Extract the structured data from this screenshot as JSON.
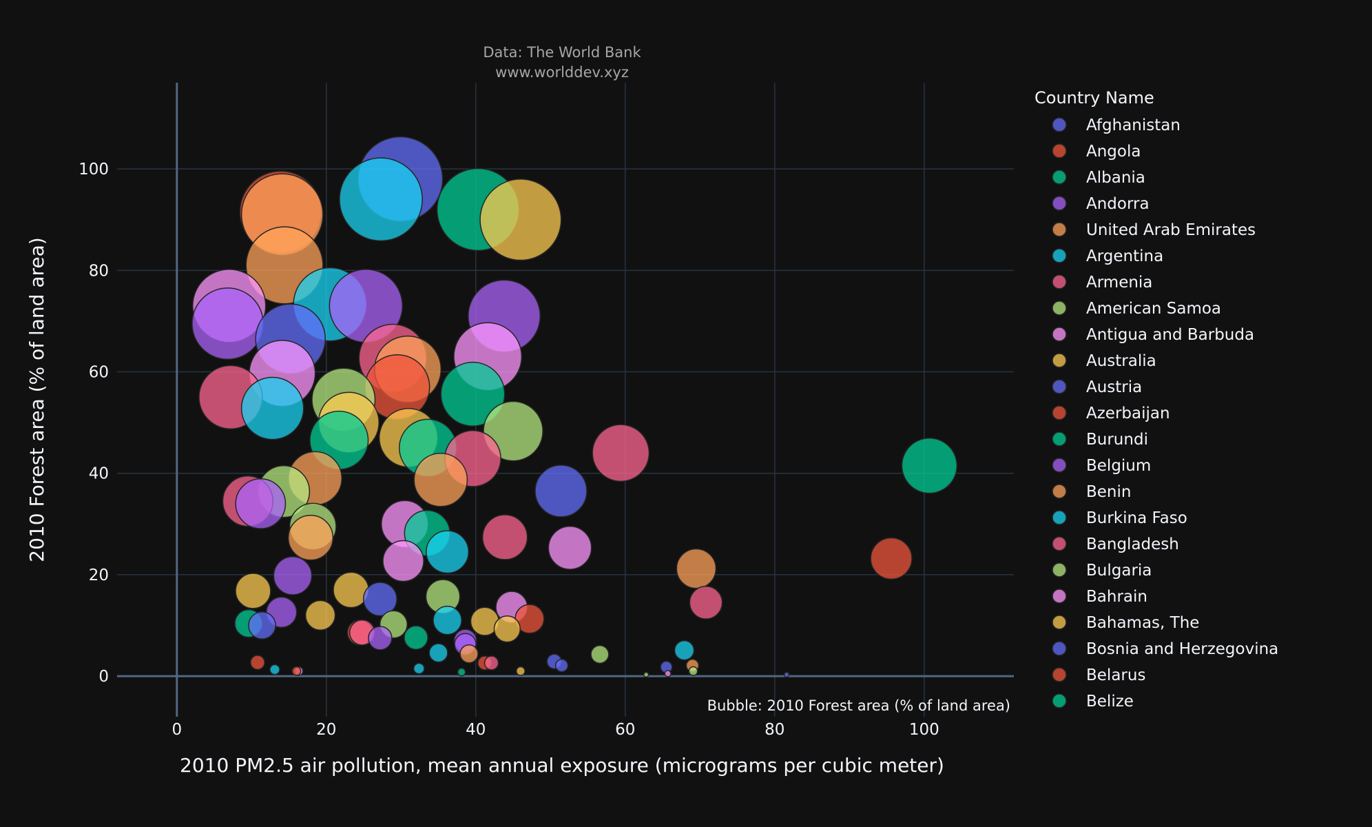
{
  "chart_data": {
    "type": "scatter",
    "subtitle_lines": [
      "Data: The World Bank",
      "www.worlddev.xyz"
    ],
    "xlabel": "2010 PM2.5 air pollution, mean annual exposure (micrograms per cubic meter)",
    "ylabel": "2010 Forest area (% of land area)",
    "size_note": "Bubble: 2010 Forest area (% of land area)",
    "xlim": [
      -8,
      112
    ],
    "ylim": [
      -8,
      117
    ],
    "xticks": [
      0,
      20,
      40,
      60,
      80,
      100
    ],
    "yticks": [
      0,
      20,
      40,
      60,
      80,
      100
    ],
    "grid": true,
    "legend_title": "Country Name",
    "legend_position": "right",
    "series": [
      {
        "name": "Afghanistan",
        "color": "#636efa",
        "points": [
          {
            "x": 51.5,
            "y": 2.1
          },
          {
            "x": 81.6,
            "y": 0.3
          }
        ]
      },
      {
        "name": "Angola",
        "color": "#EF553B",
        "points": [
          {
            "x": 10.8,
            "y": 2.7
          },
          {
            "x": 95.6,
            "y": 23.2
          }
        ]
      },
      {
        "name": "Albania",
        "color": "#00cc96",
        "points": [
          {
            "x": 33.5,
            "y": 28.2
          },
          {
            "x": 100.7,
            "y": 41.5
          }
        ]
      },
      {
        "name": "Andorra",
        "color": "#ab63fa",
        "points": [
          {
            "x": 11.2,
            "y": 34.0
          }
        ]
      },
      {
        "name": "United Arab Emirates",
        "color": "#FFA15A",
        "points": [
          {
            "x": 69.5,
            "y": 21.2
          },
          {
            "x": 69.0,
            "y": 2.1
          }
        ]
      },
      {
        "name": "Argentina",
        "color": "#19d3f3",
        "points": [
          {
            "x": 13.1,
            "y": 1.3
          },
          {
            "x": 67.9,
            "y": 5.1
          }
        ]
      },
      {
        "name": "Armenia",
        "color": "#FF6692",
        "points": [
          {
            "x": 70.8,
            "y": 14.5
          },
          {
            "x": 59.4,
            "y": 44.0
          }
        ]
      },
      {
        "name": "American Samoa",
        "color": "#B6E880",
        "points": [
          {
            "x": 56.6,
            "y": 4.3
          },
          {
            "x": 62.8,
            "y": 0.3
          }
        ]
      },
      {
        "name": "Antigua and Barbuda",
        "color": "#FF97FF",
        "points": [
          {
            "x": 16.3,
            "y": 1.0
          },
          {
            "x": 65.7,
            "y": 0.5
          }
        ]
      },
      {
        "name": "Australia",
        "color": "#FECB52",
        "points": [
          {
            "x": 46.0,
            "y": 1.0
          },
          {
            "x": 44.2,
            "y": 9.3
          }
        ]
      },
      {
        "name": "Austria",
        "color": "#636efa",
        "points": [
          {
            "x": 51.4,
            "y": 36.5
          },
          {
            "x": 50.5,
            "y": 2.9
          }
        ]
      },
      {
        "name": "Azerbaijan",
        "color": "#EF553B",
        "points": [
          {
            "x": 47.2,
            "y": 11.3
          },
          {
            "x": 41.2,
            "y": 2.6
          }
        ]
      },
      {
        "name": "Burundi",
        "color": "#00cc96",
        "points": [
          {
            "x": 40.3,
            "y": 92.0
          },
          {
            "x": 32.0,
            "y": 7.6
          }
        ]
      },
      {
        "name": "Belgium",
        "color": "#ab63fa",
        "points": [
          {
            "x": 25.3,
            "y": 73.0
          },
          {
            "x": 38.6,
            "y": 6.3
          }
        ]
      },
      {
        "name": "Benin",
        "color": "#FFA15A",
        "points": [
          {
            "x": 14.1,
            "y": 91.0
          },
          {
            "x": 39.1,
            "y": 4.4
          }
        ]
      },
      {
        "name": "Burkina Faso",
        "color": "#19d3f3",
        "points": [
          {
            "x": 27.3,
            "y": 94.0
          },
          {
            "x": 36.2,
            "y": 24.5
          }
        ]
      },
      {
        "name": "Bangladesh",
        "color": "#FF6692",
        "points": [
          {
            "x": 7.2,
            "y": 55.0
          },
          {
            "x": 43.9,
            "y": 27.4
          }
        ]
      },
      {
        "name": "Bulgaria",
        "color": "#B6E880",
        "points": [
          {
            "x": 45.0,
            "y": 48.3
          },
          {
            "x": 35.6,
            "y": 15.7
          }
        ]
      },
      {
        "name": "Bahrain",
        "color": "#FF97FF",
        "points": [
          {
            "x": 52.6,
            "y": 25.3
          },
          {
            "x": 44.8,
            "y": 13.6
          }
        ]
      },
      {
        "name": "Bahamas, The",
        "color": "#FECB52",
        "points": [
          {
            "x": 46.0,
            "y": 90.0
          },
          {
            "x": 10.2,
            "y": 16.8
          }
        ]
      },
      {
        "name": "Bosnia and Herzegovina",
        "color": "#636efa",
        "points": [
          {
            "x": 29.9,
            "y": 98.0
          },
          {
            "x": 11.4,
            "y": 10.0
          }
        ]
      },
      {
        "name": "Belarus",
        "color": "#EF553B",
        "points": [
          {
            "x": 13.9,
            "y": 91.5
          },
          {
            "x": 24.5,
            "y": 8.6
          }
        ]
      },
      {
        "name": "Belize",
        "color": "#00cc96",
        "points": [
          {
            "x": 39.6,
            "y": 55.6
          },
          {
            "x": 9.6,
            "y": 10.4
          }
        ]
      },
      {
        "name": "",
        "color": "#ab63fa",
        "points": [
          {
            "x": 6.8,
            "y": 69.5
          },
          {
            "x": 15.5,
            "y": 19.8
          },
          {
            "x": 27.2,
            "y": 7.5
          },
          {
            "x": 14.0,
            "y": 12.6
          }
        ]
      },
      {
        "name": "",
        "color": "#FFA15A",
        "points": [
          {
            "x": 14.4,
            "y": 81.0
          },
          {
            "x": 30.9,
            "y": 60.5
          },
          {
            "x": 35.3,
            "y": 38.7
          },
          {
            "x": 18.5,
            "y": 39.0
          },
          {
            "x": 17.9,
            "y": 27.3
          }
        ]
      },
      {
        "name": "",
        "color": "#19d3f3",
        "points": [
          {
            "x": 20.5,
            "y": 73.3
          },
          {
            "x": 12.8,
            "y": 52.8
          },
          {
            "x": 36.2,
            "y": 11.0
          },
          {
            "x": 35.0,
            "y": 4.6
          },
          {
            "x": 32.4,
            "y": 1.5
          }
        ]
      },
      {
        "name": "",
        "color": "#FF6692",
        "points": [
          {
            "x": 9.5,
            "y": 34.5
          },
          {
            "x": 28.9,
            "y": 62.7
          },
          {
            "x": 39.6,
            "y": 42.9
          },
          {
            "x": 24.8,
            "y": 8.6
          },
          {
            "x": 42.1,
            "y": 2.6
          }
        ]
      },
      {
        "name": "",
        "color": "#B6E880",
        "points": [
          {
            "x": 14.3,
            "y": 36.4
          },
          {
            "x": 22.3,
            "y": 54.5
          },
          {
            "x": 18.2,
            "y": 29.5
          },
          {
            "x": 29.0,
            "y": 10.2
          },
          {
            "x": 69.1,
            "y": 1.0
          }
        ]
      },
      {
        "name": "",
        "color": "#FF97FF",
        "points": [
          {
            "x": 7.0,
            "y": 73.0
          },
          {
            "x": 14.1,
            "y": 59.7
          },
          {
            "x": 41.6,
            "y": 63.0
          },
          {
            "x": 30.5,
            "y": 30.0
          },
          {
            "x": 30.3,
            "y": 22.7
          }
        ]
      },
      {
        "name": "",
        "color": "#FECB52",
        "points": [
          {
            "x": 23.0,
            "y": 50.0
          },
          {
            "x": 31.0,
            "y": 47.0
          },
          {
            "x": 19.2,
            "y": 12.0
          },
          {
            "x": 23.3,
            "y": 17.0
          },
          {
            "x": 41.2,
            "y": 10.8
          }
        ]
      },
      {
        "name": "",
        "color": "#636efa",
        "points": [
          {
            "x": 15.2,
            "y": 66.5
          },
          {
            "x": 27.2,
            "y": 15.2
          },
          {
            "x": 65.5,
            "y": 1.8
          }
        ]
      },
      {
        "name": "",
        "color": "#00cc96",
        "points": [
          {
            "x": 21.7,
            "y": 46.5
          },
          {
            "x": 33.6,
            "y": 45.0
          },
          {
            "x": 38.1,
            "y": 0.8
          }
        ]
      },
      {
        "name": "",
        "color": "#ab63fa",
        "points": [
          {
            "x": 43.8,
            "y": 71.0
          },
          {
            "x": 38.6,
            "y": 7.0
          }
        ]
      },
      {
        "name": "",
        "color": "#EF553B",
        "points": [
          {
            "x": 16.0,
            "y": 1.0
          },
          {
            "x": 29.5,
            "y": 57.0
          }
        ]
      }
    ]
  }
}
